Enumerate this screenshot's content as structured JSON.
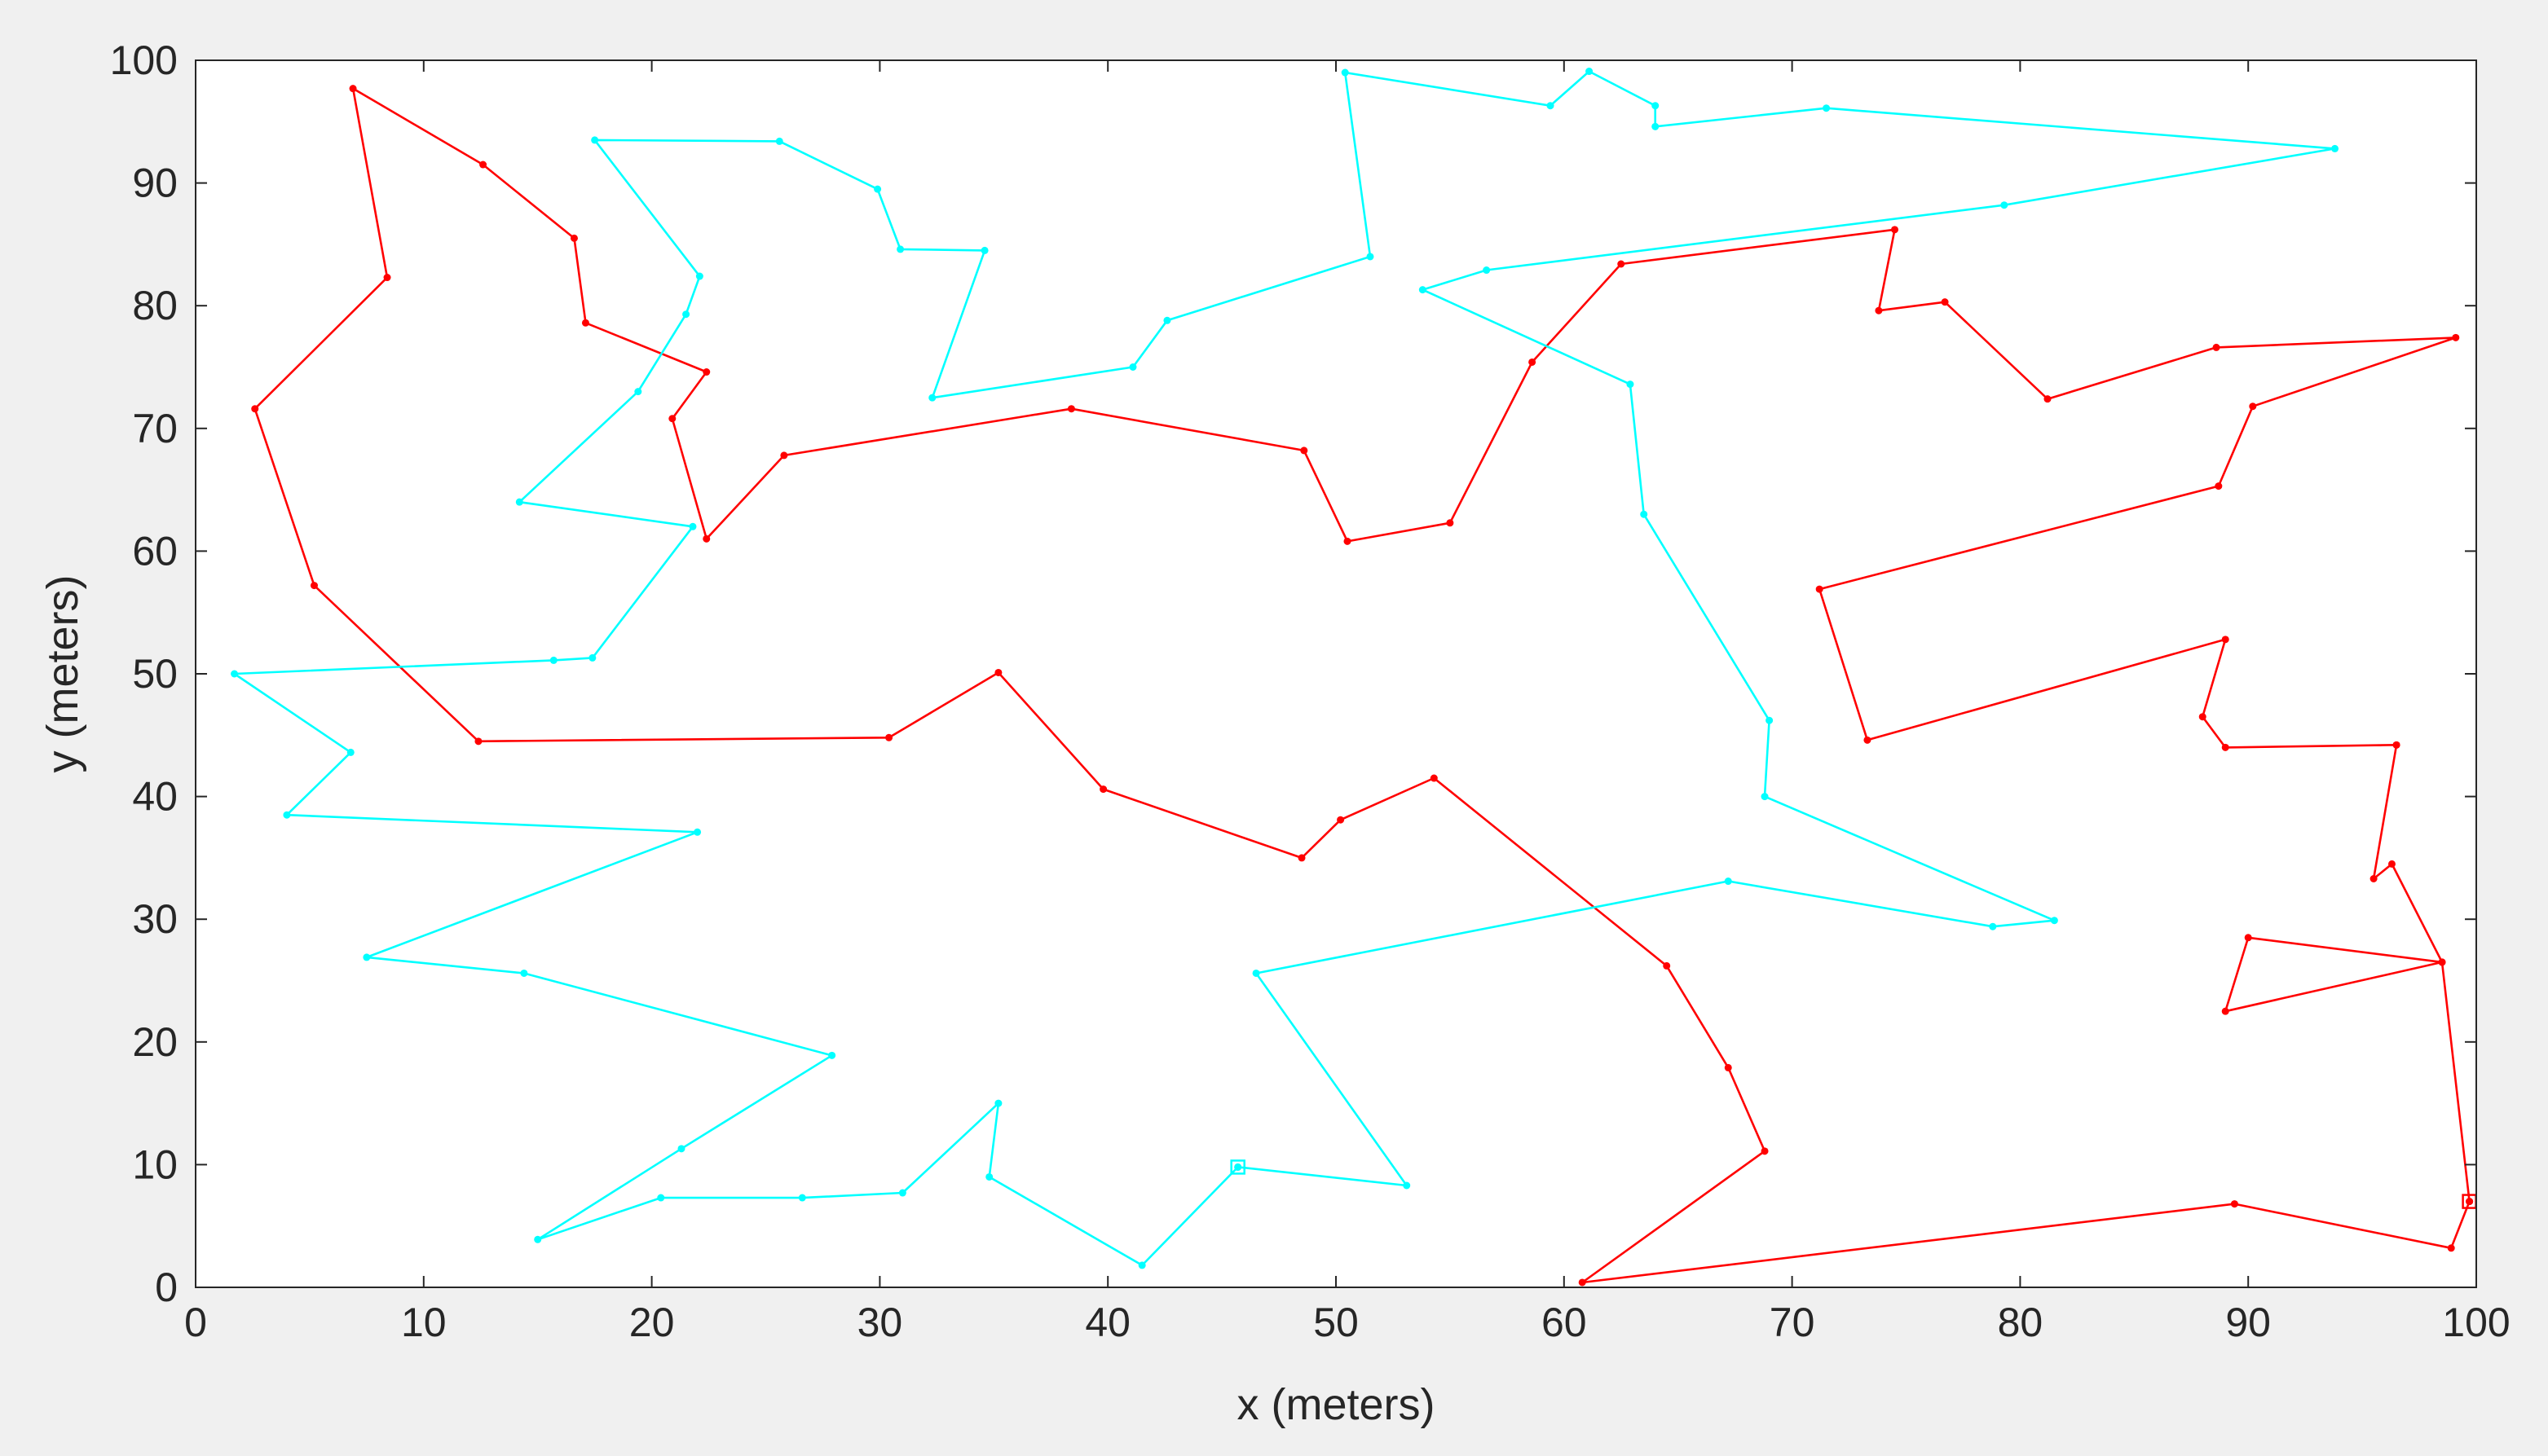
{
  "chart_data": {
    "type": "line",
    "title": "",
    "xlabel": "x (meters)",
    "ylabel": "y (meters)",
    "xlim": [
      0,
      100
    ],
    "ylim": [
      0,
      100
    ],
    "xticks": [
      0,
      10,
      20,
      30,
      40,
      50,
      60,
      70,
      80,
      90,
      100
    ],
    "yticks": [
      0,
      10,
      20,
      30,
      40,
      50,
      60,
      70,
      80,
      90,
      100
    ],
    "grid": false,
    "legend": "none",
    "series": [
      {
        "color": "#ff0000",
        "start_marker": "square",
        "x": [
          99.7,
          98.5,
          89.0,
          90.0,
          98.5,
          96.3,
          95.5,
          96.5,
          96.5,
          89.0,
          88.0,
          89.0,
          73.3,
          71.2,
          88.7,
          90.2,
          99.1,
          88.6,
          81.2,
          76.7,
          73.8,
          74.5,
          62.5,
          58.6,
          55.0,
          50.5,
          48.6,
          38.4,
          25.8,
          22.4,
          20.9,
          22.4,
          17.1,
          16.6,
          12.6,
          6.9,
          8.4,
          2.6,
          5.2,
          12.4,
          30.4,
          35.2,
          39.8,
          48.5,
          50.2,
          54.3,
          64.5,
          67.2,
          68.8,
          60.8,
          89.4,
          98.9,
          99.7
        ],
        "y": [
          7.0,
          26.5,
          22.5,
          28.5,
          26.5,
          34.5,
          33.3,
          44.2,
          44.2,
          44.0,
          46.5,
          52.8,
          44.6,
          56.9,
          65.3,
          71.8,
          77.4,
          76.6,
          72.4,
          80.3,
          79.6,
          86.2,
          83.4,
          75.4,
          62.3,
          60.8,
          68.2,
          71.6,
          67.8,
          61.0,
          70.8,
          74.6,
          78.6,
          85.5,
          91.5,
          97.7,
          82.3,
          71.6,
          57.2,
          44.5,
          44.8,
          50.1,
          40.6,
          35.0,
          38.1,
          41.5,
          26.2,
          17.9,
          11.1,
          0.4,
          6.8,
          3.2,
          7.0
        ]
      },
      {
        "color": "#00ffff",
        "start_marker": "square",
        "x": [
          45.7,
          53.1,
          46.5,
          67.2,
          78.8,
          81.5,
          68.8,
          69.0,
          63.5,
          62.9,
          53.8,
          56.6,
          79.3,
          93.8,
          71.5,
          64.0,
          64.0,
          61.1,
          59.4,
          50.4,
          51.5,
          42.6,
          41.1,
          32.3,
          34.6,
          30.9,
          29.9,
          25.6,
          17.5,
          22.1,
          21.5,
          19.4,
          14.2,
          21.8,
          17.4,
          15.7,
          1.7,
          6.8,
          4.0,
          22.0,
          7.5,
          14.4,
          27.9,
          21.3,
          15.0,
          20.4,
          26.6,
          31.0,
          35.2,
          34.8,
          41.5,
          45.7
        ],
        "y": [
          9.8,
          8.3,
          25.6,
          33.1,
          29.4,
          29.9,
          40.0,
          46.2,
          63.0,
          73.6,
          81.3,
          82.9,
          88.2,
          92.8,
          96.1,
          94.6,
          96.3,
          99.1,
          96.3,
          99.0,
          84.0,
          78.8,
          75.0,
          72.5,
          84.5,
          84.6,
          89.5,
          93.4,
          93.5,
          82.4,
          79.3,
          73.0,
          64.0,
          62.0,
          51.3,
          51.1,
          50.0,
          43.6,
          38.5,
          37.1,
          26.9,
          25.6,
          18.9,
          11.3,
          3.9,
          7.3,
          7.3,
          7.7,
          15.0,
          9.0,
          1.8,
          9.8
        ]
      }
    ]
  }
}
